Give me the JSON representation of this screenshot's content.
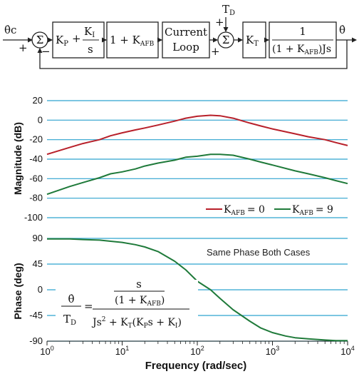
{
  "block_diagram": {
    "input_signal": "θ̇c",
    "input_sign_plus": "+",
    "input_sign_minus": "−",
    "pi_block": {
      "kp": "K",
      "kp_sub": "P",
      "plus": "+",
      "ki": "K",
      "ki_sub": "I",
      "s": "s"
    },
    "afb_block": {
      "text": "1 + K",
      "sub": "AFB"
    },
    "current_loop_block": {
      "line1": "Current",
      "line2": "Loop"
    },
    "disturbance": {
      "text": "T",
      "sub": "D"
    },
    "sum2_sign_top": "+",
    "sum2_sign_left": "+",
    "kt_block": {
      "text": "K",
      "sub": "T"
    },
    "plant_block": {
      "numerator": "1",
      "den_open": "(1 + K",
      "den_sub": "AFB",
      "den_close": ")Js"
    },
    "output_signal": "θ̇",
    "sum_symbol": "Σ"
  },
  "chart_data": [
    {
      "type": "line",
      "name": "magnitude",
      "ylabel": "Magnitude (dB)",
      "ylim": [
        -100,
        20
      ],
      "yticks": [
        20,
        0,
        -20,
        -40,
        -60,
        -80,
        -100
      ],
      "xscale": "log",
      "xlim": [
        1,
        10000
      ],
      "grid": true,
      "legend": "lower-right",
      "series": [
        {
          "label": "K",
          "label_sub": "AFB",
          "label_value": "= 0",
          "color": "#b8202a",
          "x": [
            1,
            2,
            3,
            5,
            7,
            10,
            15,
            20,
            30,
            50,
            70,
            100,
            150,
            200,
            300,
            500,
            700,
            1000,
            2000,
            3000,
            5000,
            7000,
            10000
          ],
          "y": [
            -35,
            -28,
            -24,
            -20,
            -16,
            -13,
            -10,
            -8,
            -5,
            -1,
            2,
            4,
            5,
            4.5,
            2,
            -3,
            -6,
            -9,
            -14,
            -17,
            -20,
            -23,
            -26
          ]
        },
        {
          "label": "K",
          "label_sub": "AFB",
          "label_value": "= 9",
          "color": "#1f7a3a",
          "x": [
            1,
            2,
            3,
            5,
            7,
            10,
            15,
            20,
            30,
            50,
            70,
            100,
            150,
            200,
            300,
            500,
            700,
            1000,
            2000,
            3000,
            5000,
            7000,
            10000
          ],
          "y": [
            -76,
            -68,
            -64,
            -59,
            -55,
            -53,
            -50,
            -47,
            -44,
            -41,
            -38,
            -37,
            -35,
            -35,
            -36,
            -40,
            -43,
            -46,
            -52,
            -55,
            -59,
            -62,
            -65
          ]
        }
      ]
    },
    {
      "type": "line",
      "name": "phase",
      "ylabel": "Phase (deg)",
      "xlabel": "Frequency (rad/sec)",
      "ylim": [
        -90,
        90
      ],
      "yticks": [
        90,
        45,
        0,
        -45,
        -90
      ],
      "xscale": "log",
      "xlim": [
        1,
        10000
      ],
      "xticks": [
        {
          "base": "10",
          "exp": "0"
        },
        {
          "base": "10",
          "exp": "1"
        },
        {
          "base": "10",
          "exp": "2"
        },
        {
          "base": "10",
          "exp": "3"
        },
        {
          "base": "10",
          "exp": "4"
        }
      ],
      "grid": true,
      "annotation": "Same Phase Both Cases",
      "series": [
        {
          "color": "#1f7a3a",
          "x": [
            1,
            2,
            3,
            5,
            7,
            10,
            15,
            20,
            30,
            50,
            70,
            100,
            150,
            200,
            300,
            500,
            700,
            1000,
            1500,
            2000,
            3000,
            5000,
            7000,
            10000
          ],
          "y": [
            89,
            89,
            88,
            87,
            85,
            83,
            79,
            75,
            67,
            50,
            35,
            15,
            0,
            -15,
            -35,
            -55,
            -67,
            -75,
            -81,
            -84,
            -86,
            -88,
            -89,
            -89
          ]
        }
      ]
    }
  ],
  "equation": {
    "lhs_num": "θ̇",
    "lhs_den": "T",
    "lhs_den_sub": "D",
    "equals": "=",
    "num_s": "s",
    "num_den_open": "(1 + K",
    "num_den_sub": "AFB",
    "num_den_close": ")",
    "den_a": "Js",
    "den_sq": "2",
    "den_b": " + K",
    "den_b_sub": "T",
    "den_c": "(K",
    "den_c_sub": "P",
    "den_d": "s + K",
    "den_d_sub": "I",
    "den_e": ")"
  }
}
